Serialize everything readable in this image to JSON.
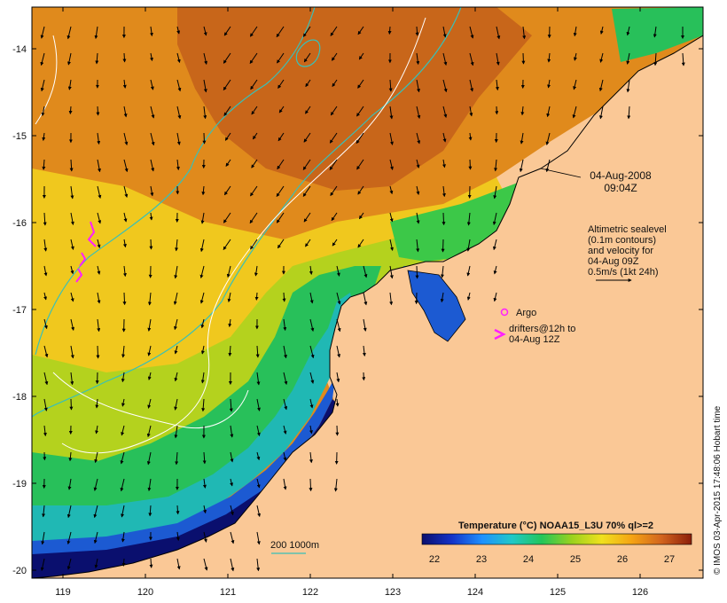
{
  "map": {
    "axes": {
      "lon_ticks": [
        "119",
        "120",
        "121",
        "122",
        "123",
        "124",
        "125",
        "126"
      ],
      "lat_ticks": [
        "-14",
        "-15",
        "-16",
        "-17",
        "-18",
        "-19",
        "-20"
      ]
    },
    "date": "04-Aug-2008",
    "time": "09:04Z",
    "altimetry_note": [
      "Altimetric sealevel",
      "(0.1m contours)",
      "and velocity for",
      "04-Aug 09Z",
      "0.5m/s (1kt 24h)"
    ],
    "argo_label": "Argo",
    "drifters_label": [
      "drifters@12h to",
      "04-Aug 12Z"
    ],
    "isobath_label": "200  1000m",
    "colorbar": {
      "title": "Temperature (°C) NOAA15_L3U 70% ql>=2",
      "ticks": [
        "22",
        "23",
        "24",
        "25",
        "26",
        "27"
      ],
      "stops": [
        "#0a0f6e",
        "#1433c8",
        "#1e90ff",
        "#20c8c8",
        "#22c65a",
        "#9ad21e",
        "#f0e11e",
        "#f5a414",
        "#d2641e",
        "#8c1e0a"
      ]
    },
    "credit": "© IMOS 03-Apr-2015 17:48:06 Hobart time",
    "colors": {
      "land": "#fac896",
      "isobath": "#38c0b8",
      "contour": "#ffffff",
      "drifter": "#ff20ff"
    }
  }
}
